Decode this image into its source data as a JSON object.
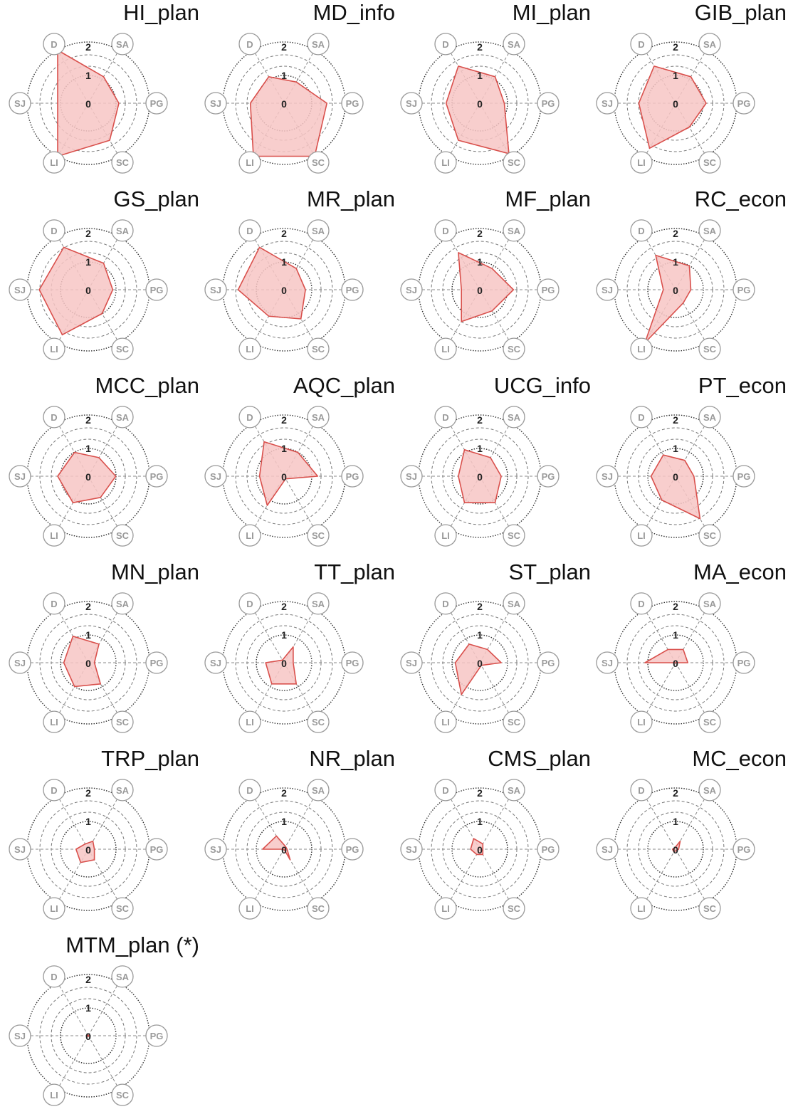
{
  "chart_data": [
    {
      "type": "radar",
      "title": "HI_plan",
      "axes": [
        "SA",
        "PG",
        "SC",
        "LI",
        "SJ",
        "D"
      ],
      "values": [
        1.0,
        1.0,
        1.4,
        2.0,
        1.0,
        2.0
      ],
      "rticks": [
        "0",
        "1",
        "2"
      ],
      "rlim": [
        0,
        2
      ],
      "colors": {
        "fill": "#f7c6c4",
        "line": "#d9504c"
      }
    },
    {
      "type": "radar",
      "title": "MD_info",
      "axes": [
        "SA",
        "PG",
        "SC",
        "LI",
        "SJ",
        "D"
      ],
      "values": [
        0.8,
        1.4,
        2.0,
        2.0,
        1.1,
        1.0
      ],
      "rticks": [
        "0",
        "1",
        "2"
      ],
      "rlim": [
        0,
        2
      ],
      "colors": {
        "fill": "#f7c6c4",
        "line": "#d9504c"
      }
    },
    {
      "type": "radar",
      "title": "MI_plan",
      "axes": [
        "SA",
        "PG",
        "SC",
        "LI",
        "SJ",
        "D"
      ],
      "values": [
        1.0,
        0.8,
        1.9,
        1.4,
        1.1,
        1.4
      ],
      "rticks": [
        "0",
        "1",
        "2"
      ],
      "rlim": [
        0,
        2
      ],
      "colors": {
        "fill": "#f7c6c4",
        "line": "#d9504c"
      }
    },
    {
      "type": "radar",
      "title": "GIB_plan",
      "axes": [
        "SA",
        "PG",
        "SC",
        "LI",
        "SJ",
        "D"
      ],
      "values": [
        1.0,
        1.0,
        0.9,
        1.7,
        1.2,
        1.4
      ],
      "rticks": [
        "0",
        "1",
        "2"
      ],
      "rlim": [
        0,
        2
      ],
      "colors": {
        "fill": "#f7c6c4",
        "line": "#d9504c"
      }
    },
    {
      "type": "radar",
      "title": "GS_plan",
      "axes": [
        "SA",
        "PG",
        "SC",
        "LI",
        "SJ",
        "D"
      ],
      "values": [
        1.0,
        0.8,
        0.9,
        1.7,
        1.6,
        1.6
      ],
      "rticks": [
        "0",
        "1",
        "2"
      ],
      "rlim": [
        0,
        2
      ],
      "colors": {
        "fill": "#f7c6c4",
        "line": "#d9504c"
      }
    },
    {
      "type": "radar",
      "title": "MR_plan",
      "axes": [
        "SA",
        "PG",
        "SC",
        "LI",
        "SJ",
        "D"
      ],
      "values": [
        0.8,
        0.7,
        1.1,
        1.0,
        1.5,
        1.6
      ],
      "rticks": [
        "0",
        "1",
        "2"
      ],
      "rlim": [
        0,
        2
      ],
      "colors": {
        "fill": "#f7c6c4",
        "line": "#d9504c"
      }
    },
    {
      "type": "radar",
      "title": "MF_plan",
      "axes": [
        "SA",
        "PG",
        "SC",
        "LI",
        "SJ",
        "D"
      ],
      "values": [
        0.8,
        1.1,
        0.8,
        1.2,
        0.6,
        1.4
      ],
      "rticks": [
        "0",
        "1",
        "2"
      ],
      "rlim": [
        0,
        2
      ],
      "colors": {
        "fill": "#f7c6c4",
        "line": "#d9504c"
      }
    },
    {
      "type": "radar",
      "title": "RC_econ",
      "axes": [
        "SA",
        "PG",
        "SC",
        "LI",
        "SJ",
        "D"
      ],
      "values": [
        0.9,
        0.5,
        0.5,
        2.0,
        0.4,
        1.3
      ],
      "rticks": [
        "0",
        "1",
        "2"
      ],
      "rlim": [
        0,
        2
      ],
      "colors": {
        "fill": "#f7c6c4",
        "line": "#d9504c"
      }
    },
    {
      "type": "radar",
      "title": "MCC_plan",
      "axes": [
        "SA",
        "PG",
        "SC",
        "LI",
        "SJ",
        "D"
      ],
      "values": [
        0.7,
        0.9,
        0.8,
        1.0,
        1.0,
        0.9
      ],
      "rticks": [
        "0",
        "1",
        "2"
      ],
      "rlim": [
        0,
        2
      ],
      "colors": {
        "fill": "#f7c6c4",
        "line": "#d9504c"
      }
    },
    {
      "type": "radar",
      "title": "AQC_plan",
      "axes": [
        "SA",
        "PG",
        "SC",
        "LI",
        "SJ",
        "D"
      ],
      "values": [
        0.9,
        1.1,
        0.1,
        1.1,
        0.8,
        1.3
      ],
      "rticks": [
        "0",
        "1",
        "2"
      ],
      "rlim": [
        0,
        2
      ],
      "colors": {
        "fill": "#f7c6c4",
        "line": "#d9504c"
      }
    },
    {
      "type": "radar",
      "title": "UCG_info",
      "axes": [
        "SA",
        "PG",
        "SC",
        "LI",
        "SJ",
        "D"
      ],
      "values": [
        0.7,
        0.7,
        1.0,
        1.0,
        0.7,
        1.0
      ],
      "rticks": [
        "0",
        "1",
        "2"
      ],
      "rlim": [
        0,
        2
      ],
      "colors": {
        "fill": "#f7c6c4",
        "line": "#d9504c"
      }
    },
    {
      "type": "radar",
      "title": "PT_econ",
      "axes": [
        "SA",
        "PG",
        "SC",
        "LI",
        "SJ",
        "D"
      ],
      "values": [
        0.6,
        0.6,
        1.6,
        0.9,
        0.8,
        0.8
      ],
      "rticks": [
        "0",
        "1",
        "2"
      ],
      "rlim": [
        0,
        2
      ],
      "colors": {
        "fill": "#f7c6c4",
        "line": "#d9504c"
      }
    },
    {
      "type": "radar",
      "title": "MN_plan",
      "axes": [
        "SA",
        "PG",
        "SC",
        "LI",
        "SJ",
        "D"
      ],
      "values": [
        0.7,
        0.2,
        0.8,
        0.9,
        0.8,
        1.0
      ],
      "rticks": [
        "0",
        "1",
        "2"
      ],
      "rlim": [
        0,
        2
      ],
      "colors": {
        "fill": "#f7c6c4",
        "line": "#d9504c"
      }
    },
    {
      "type": "radar",
      "title": "TT_plan",
      "axes": [
        "SA",
        "PG",
        "SC",
        "LI",
        "SJ",
        "D"
      ],
      "values": [
        0.6,
        0.3,
        0.8,
        0.8,
        0.6,
        0.1
      ],
      "rticks": [
        "0",
        "1",
        "2"
      ],
      "rlim": [
        0,
        2
      ],
      "colors": {
        "fill": "#f7c6c4",
        "line": "#d9504c"
      }
    },
    {
      "type": "radar",
      "title": "ST_plan",
      "axes": [
        "SA",
        "PG",
        "SC",
        "LI",
        "SJ",
        "D"
      ],
      "values": [
        0.5,
        0.7,
        0.1,
        1.2,
        0.8,
        0.7
      ],
      "rticks": [
        "0",
        "1",
        "2"
      ],
      "rlim": [
        0,
        2
      ],
      "colors": {
        "fill": "#f7c6c4",
        "line": "#d9504c"
      }
    },
    {
      "type": "radar",
      "title": "MA_econ",
      "axes": [
        "SA",
        "PG",
        "SC",
        "LI",
        "SJ",
        "D"
      ],
      "values": [
        0.5,
        0.4,
        0.0,
        0.0,
        1.0,
        0.5
      ],
      "rticks": [
        "0",
        "1",
        "2"
      ],
      "rlim": [
        0,
        2
      ],
      "colors": {
        "fill": "#f7c6c4",
        "line": "#d9504c"
      }
    },
    {
      "type": "radar",
      "title": "TRP_plan",
      "axes": [
        "SA",
        "PG",
        "SC",
        "LI",
        "SJ",
        "D"
      ],
      "values": [
        0.3,
        0.2,
        0.4,
        0.5,
        0.4,
        0.2
      ],
      "rticks": [
        "0",
        "1",
        "2"
      ],
      "rlim": [
        0,
        2
      ],
      "colors": {
        "fill": "#f7c6c4",
        "line": "#d9504c"
      }
    },
    {
      "type": "radar",
      "title": "NR_plan",
      "axes": [
        "SA",
        "PG",
        "SC",
        "LI",
        "SJ",
        "D"
      ],
      "values": [
        0.1,
        0.1,
        0.4,
        0.0,
        0.7,
        0.5
      ],
      "rticks": [
        "0",
        "1",
        "2"
      ],
      "rlim": [
        0,
        2
      ],
      "colors": {
        "fill": "#f7c6c4",
        "line": "#d9504c"
      }
    },
    {
      "type": "radar",
      "title": "CMS_plan",
      "axes": [
        "SA",
        "PG",
        "SC",
        "LI",
        "SJ",
        "D"
      ],
      "values": [
        0.2,
        0.1,
        0.2,
        0.2,
        0.3,
        0.4
      ],
      "rticks": [
        "0",
        "1",
        "2"
      ],
      "rlim": [
        0,
        2
      ],
      "colors": {
        "fill": "#f7c6c4",
        "line": "#d9504c"
      }
    },
    {
      "type": "radar",
      "title": "MC_econ",
      "axes": [
        "SA",
        "PG",
        "SC",
        "LI",
        "SJ",
        "D"
      ],
      "values": [
        0.3,
        0.1,
        0.05,
        0.1,
        0.1,
        0.05
      ],
      "rticks": [
        "0",
        "1",
        "2"
      ],
      "rlim": [
        0,
        2
      ],
      "colors": {
        "fill": "#f7c6c4",
        "line": "#d9504c"
      }
    },
    {
      "type": "radar",
      "title": "MTM_plan (*)",
      "axes": [
        "SA",
        "PG",
        "SC",
        "LI",
        "SJ",
        "D"
      ],
      "values": [
        0.02,
        0.02,
        0.02,
        0.02,
        0.02,
        0.02
      ],
      "rticks": [
        "0",
        "1",
        "2"
      ],
      "rlim": [
        0,
        2
      ],
      "colors": {
        "fill": "#f7c6c4",
        "line": "#d9504c"
      }
    }
  ]
}
